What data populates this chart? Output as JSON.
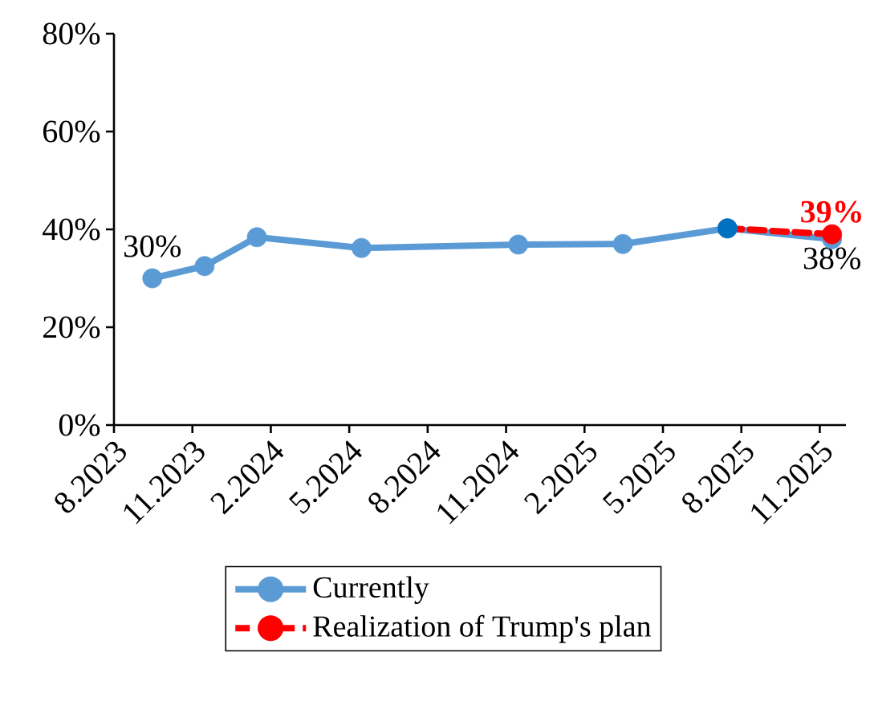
{
  "chart_data": {
    "type": "line",
    "x": [
      "2023-09-15",
      "2023-11-15",
      "2024-01-15",
      "2024-05-15",
      "2024-11-15",
      "2025-03-15",
      "2025-07-15",
      "2025-11-15"
    ],
    "series": [
      {
        "name": "Currently",
        "color": "#5b9bd5",
        "values": [
          30,
          32.5,
          38.4,
          36.2,
          36.9,
          37,
          40.2,
          38
        ],
        "value_labels": [
          "30%",
          null,
          null,
          null,
          null,
          null,
          null,
          "38%"
        ],
        "line_style": "solid"
      },
      {
        "name": "Realization of Trump's plan",
        "color": "#ff0000",
        "colors": [
          "#0070c0",
          "#ff0000"
        ],
        "x": [
          "2025-07-15",
          "2025-11-15"
        ],
        "values": [
          40.2,
          39
        ],
        "value_labels": [
          null,
          "39%"
        ],
        "line_style": "dashed"
      }
    ],
    "xlim": [
      "2023-08",
      "2025-12"
    ],
    "xticks": [
      {
        "value": "2023-08",
        "label": "8.2023"
      },
      {
        "value": "2023-11",
        "label": "11.2023"
      },
      {
        "value": "2024-02",
        "label": "2.2024"
      },
      {
        "value": "2024-05",
        "label": "5.2024"
      },
      {
        "value": "2024-08",
        "label": "8.2024"
      },
      {
        "value": "2024-11",
        "label": "11.2024"
      },
      {
        "value": "2025-02",
        "label": "2.2025"
      },
      {
        "value": "2025-05",
        "label": "5.2025"
      },
      {
        "value": "2025-08",
        "label": "8.2025"
      },
      {
        "value": "2025-11",
        "label": "11.2025"
      }
    ],
    "ylim": [
      0,
      80
    ],
    "yticks": [
      {
        "value": 0,
        "label": "0%"
      },
      {
        "value": 20,
        "label": "20%"
      },
      {
        "value": 40,
        "label": "40%"
      },
      {
        "value": 60,
        "label": "60%"
      },
      {
        "value": 80,
        "label": "80%"
      }
    ],
    "grid": false,
    "legend": "bottom",
    "marker": "circle"
  }
}
